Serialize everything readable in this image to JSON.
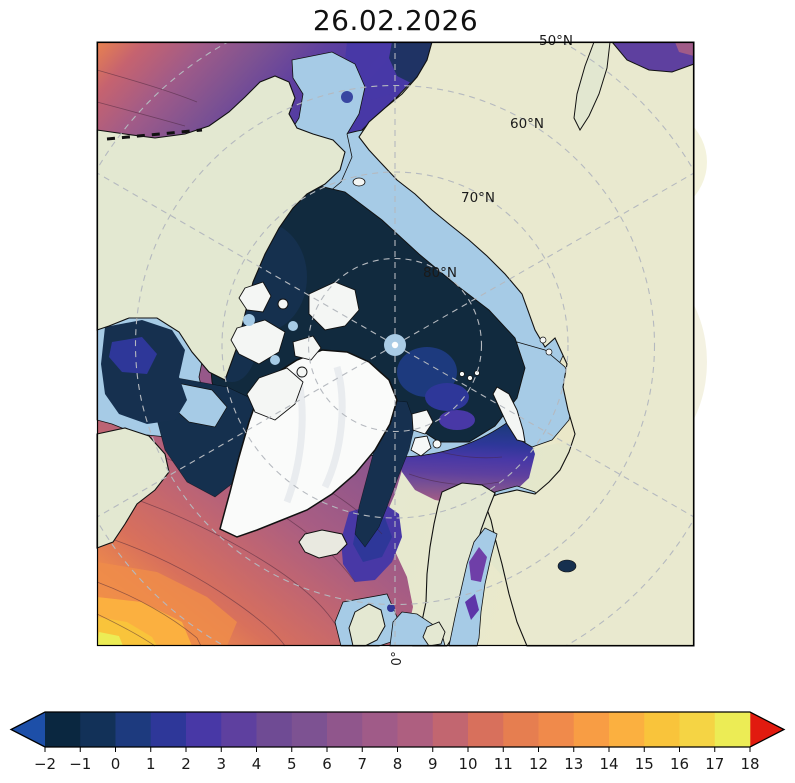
{
  "title": "26.02.2026",
  "map": {
    "latitude_labels": [
      "50°N",
      "60°N",
      "70°N",
      "80°N"
    ],
    "meridian_label": "0°",
    "colors": {
      "land": "#e6e9d4",
      "sea_ice": "#a6cbe6",
      "arctic_basin": "#112a3e",
      "greenland_ice": "#fafbfa",
      "graticule": "#b5b9bf",
      "coastline": "#111111"
    }
  },
  "colorbar": {
    "tick_labels": [
      "−2",
      "−1",
      "0",
      "1",
      "2",
      "3",
      "4",
      "5",
      "6",
      "7",
      "8",
      "9",
      "10",
      "11",
      "12",
      "13",
      "14",
      "15",
      "16",
      "17",
      "18"
    ],
    "segment_colors": [
      "#0a2740",
      "#123158",
      "#1d3a7e",
      "#2e3799",
      "#4838a6",
      "#5e409f",
      "#6f4b94",
      "#7d5292",
      "#90568c",
      "#a05b88",
      "#ae5f80",
      "#c26670",
      "#d8705c",
      "#e67e50",
      "#f08a4b",
      "#f89d44",
      "#fbb040",
      "#f9c43b",
      "#f5d444",
      "#ecec55"
    ],
    "under_arrow_color": "#1d4fa8",
    "over_arrow_color": "#e11a0f",
    "outline_color": "#000000",
    "tick_color": "#1a1a1a"
  }
}
